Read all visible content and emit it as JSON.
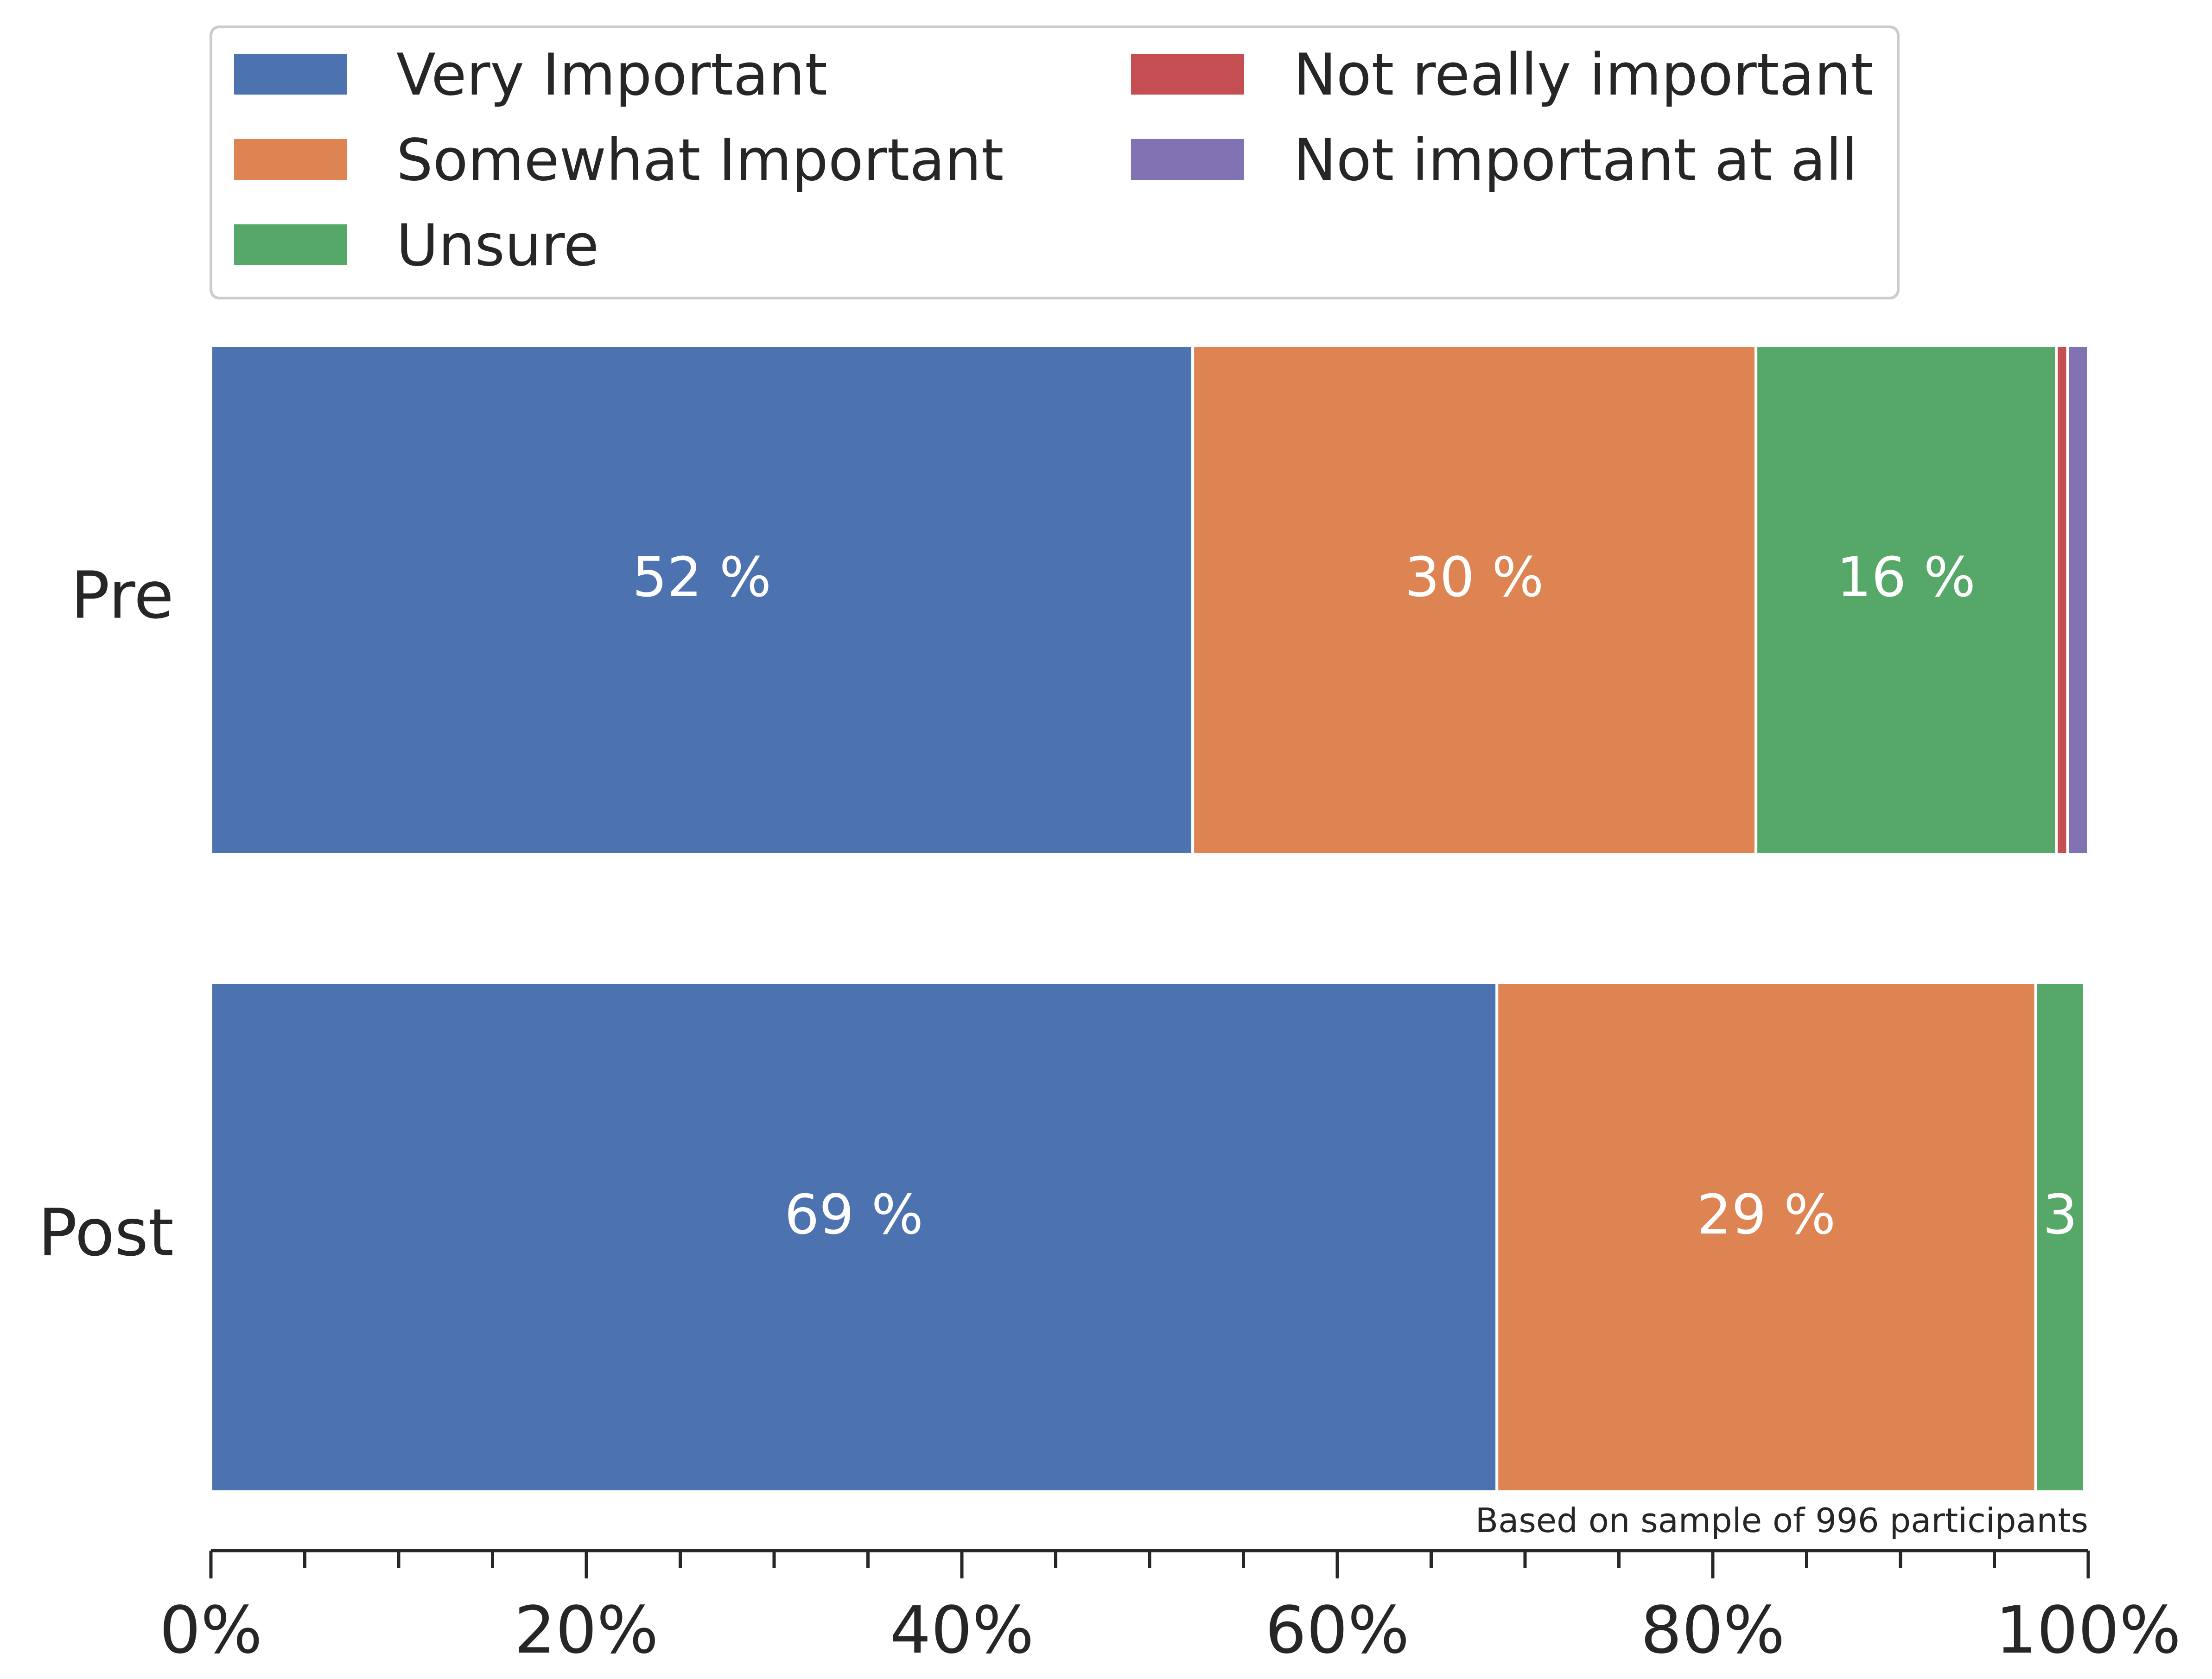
{
  "chart_data": {
    "type": "bar",
    "orientation": "horizontal",
    "stacked": true,
    "categories": [
      "Pre",
      "Post"
    ],
    "series": [
      {
        "name": "Very Important",
        "color": "#4c72b0",
        "values": [
          52.3,
          68.5
        ],
        "labels": [
          "52 %",
          "69 %"
        ]
      },
      {
        "name": "Somewhat Important",
        "color": "#dd8452",
        "values": [
          30.0,
          28.7
        ],
        "labels": [
          "30 %",
          "29 %"
        ]
      },
      {
        "name": "Unsure",
        "color": "#55a868",
        "values": [
          16.0,
          2.6
        ],
        "labels": [
          "16 %",
          "3"
        ]
      },
      {
        "name": "Not really important",
        "color": "#c44e52",
        "values": [
          0.6,
          0.0
        ],
        "labels": [
          "",
          ""
        ]
      },
      {
        "name": "Not important at all",
        "color": "#8172b3",
        "values": [
          1.1,
          0.0
        ],
        "labels": [
          "",
          ""
        ]
      }
    ],
    "x_range": [
      0,
      100
    ],
    "x_major_ticks": [
      0,
      20,
      40,
      60,
      80,
      100
    ],
    "x_minor_ticks": [
      5,
      10,
      15,
      25,
      30,
      35,
      45,
      50,
      55,
      65,
      70,
      75,
      85,
      90,
      95
    ],
    "x_tick_labels": [
      "0%",
      "20%",
      "40%",
      "60%",
      "80%",
      "100%"
    ],
    "xlabel": "",
    "ylabel": "",
    "title": "",
    "grid": false,
    "legend_position": "top",
    "footnote": "Based on sample of 996 participants"
  }
}
